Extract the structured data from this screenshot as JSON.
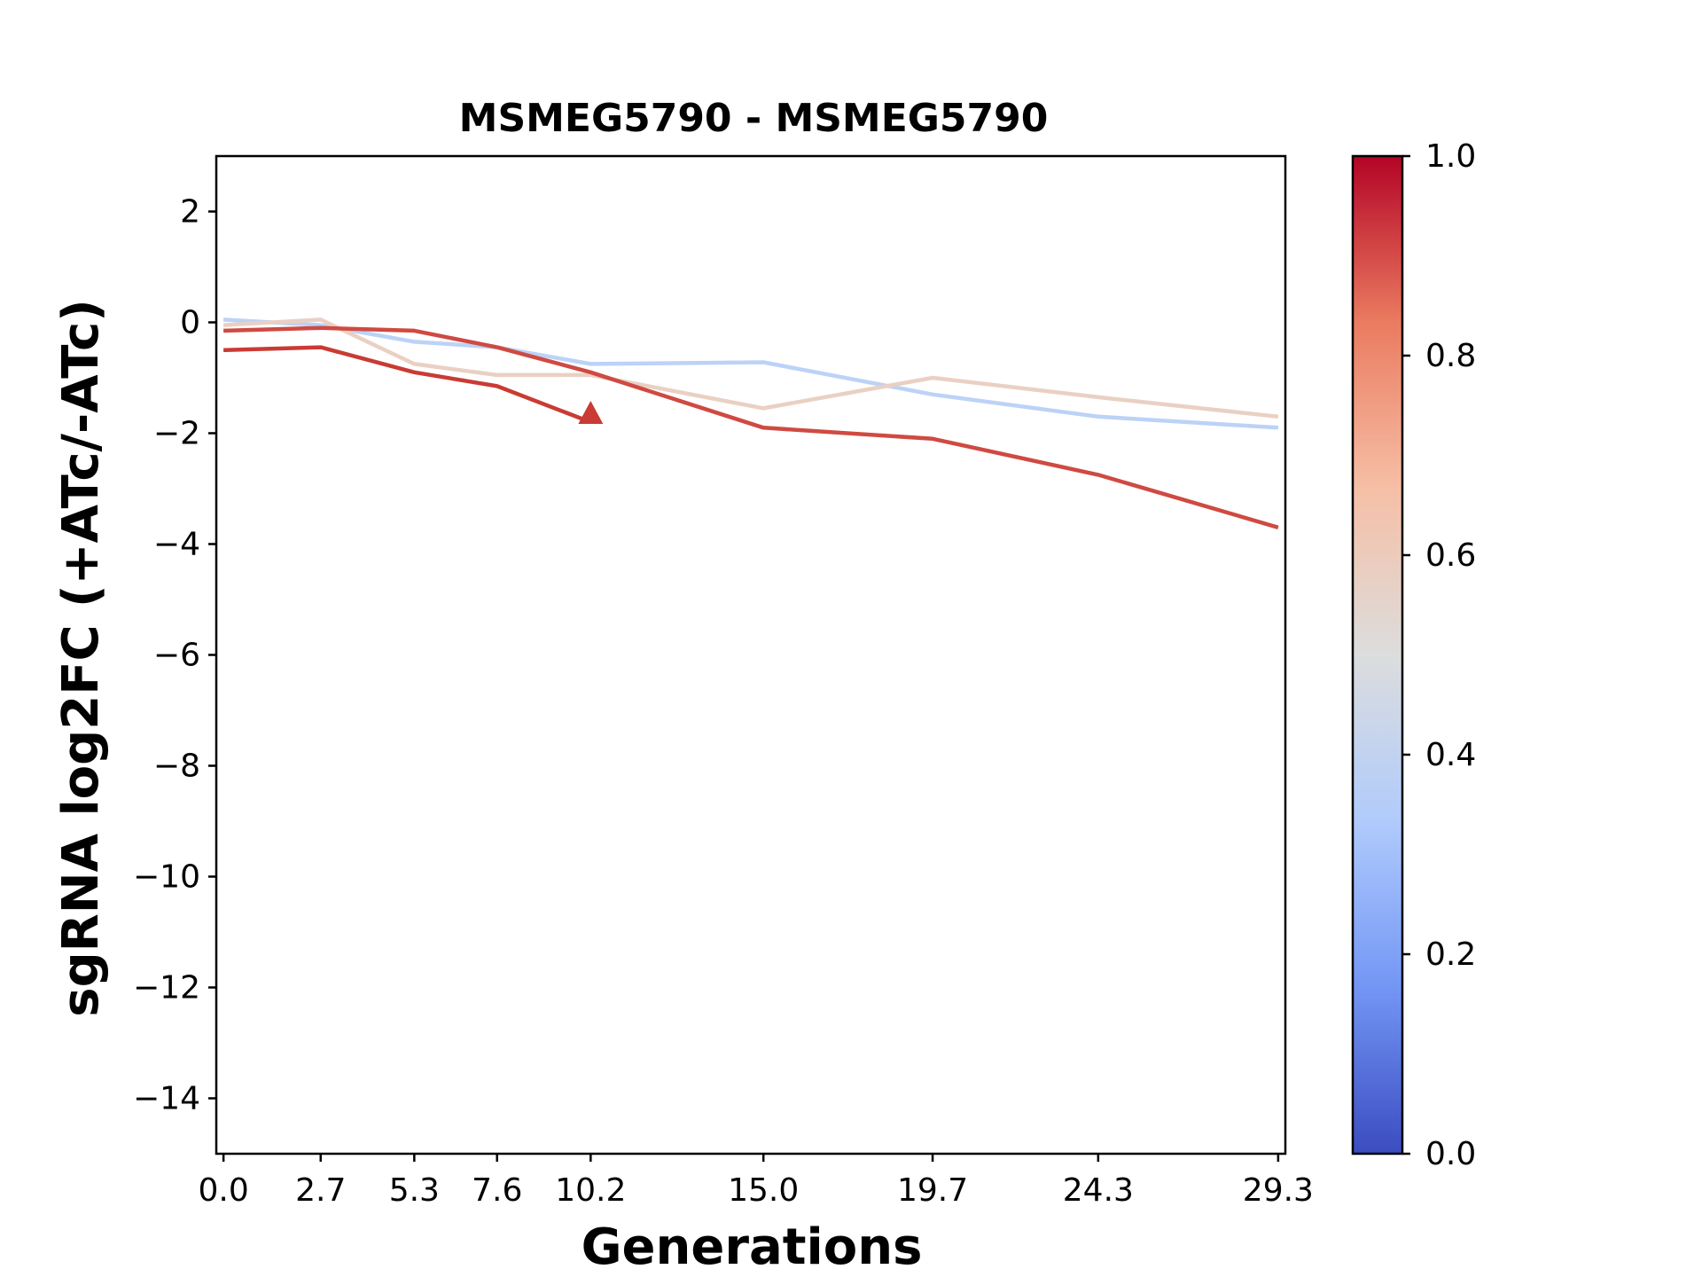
{
  "chart_data": {
    "type": "line",
    "title": "MSMEG5790 - MSMEG5790",
    "xlabel": "Generations",
    "ylabel": "sgRNA log2FC (+ATc/-ATc)",
    "x_ticks": [
      "0.0",
      "2.7",
      "5.3",
      "7.6",
      "10.2",
      "15.0",
      "19.7",
      "24.3",
      "29.3"
    ],
    "y_ticks": [
      "2",
      "0",
      "−2",
      "−4",
      "−6",
      "−8",
      "−10",
      "−12",
      "−14"
    ],
    "xlim": [
      -0.2,
      29.5
    ],
    "ylim": [
      -15,
      3
    ],
    "grid": false,
    "series": [
      {
        "color": "#bcd2f7",
        "colorbar_value": 0.36,
        "x": [
          0.0,
          2.7,
          5.3,
          7.6,
          10.2,
          15.0,
          19.7,
          24.3,
          29.3
        ],
        "y": [
          0.05,
          -0.05,
          -0.35,
          -0.45,
          -0.75,
          -0.72,
          -1.3,
          -1.7,
          -1.9
        ]
      },
      {
        "color": "#ead0c3",
        "colorbar_value": 0.58,
        "x": [
          0.0,
          2.7,
          5.3,
          7.6,
          10.2,
          15.0,
          19.7,
          24.3,
          29.3
        ],
        "y": [
          -0.05,
          0.05,
          -0.75,
          -0.95,
          -0.95,
          -1.55,
          -1.0,
          -1.35,
          -1.7
        ]
      },
      {
        "color": "#cf4a42",
        "colorbar_value": 0.92,
        "x": [
          0.0,
          2.7,
          5.3,
          7.6,
          10.2,
          15.0,
          19.7,
          24.3,
          29.3
        ],
        "y": [
          -0.15,
          -0.1,
          -0.15,
          -0.45,
          -0.9,
          -1.9,
          -2.1,
          -2.75,
          -3.7
        ]
      },
      {
        "color": "#c93b34",
        "colorbar_value": 0.95,
        "x": [
          0.0,
          2.7,
          5.3,
          7.6
        ],
        "y": [
          -0.5,
          -0.45,
          -0.9,
          -1.15
        ],
        "arrow_to": {
          "x": 10.2,
          "y": -1.8
        }
      }
    ],
    "colorbar": {
      "colormap": "coolwarm",
      "range": [
        0.0,
        1.0
      ],
      "ticks": [
        "0.0",
        "0.2",
        "0.4",
        "0.6",
        "0.8",
        "1.0"
      ],
      "stops": [
        "#3b4cc0",
        "#7396f5",
        "#b0cbfc",
        "#dcdddd",
        "#f6bfa6",
        "#ea7b60",
        "#b40426"
      ]
    }
  }
}
